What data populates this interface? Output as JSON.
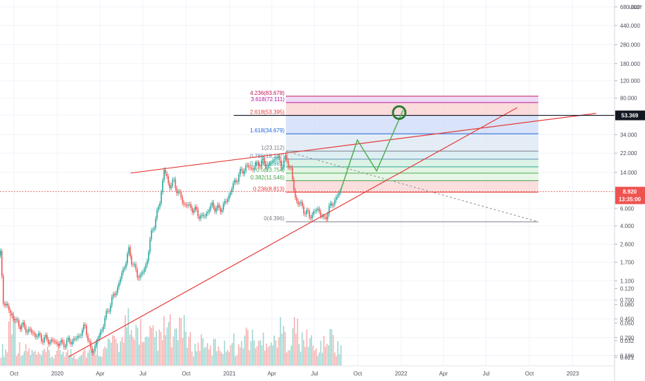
{
  "chart_data": {
    "type": "candlestick",
    "price_scale": "log",
    "axis_unit": "USDT",
    "y_ticks": [
      "680.000",
      "440.000",
      "280.000",
      "180.000",
      "120.000",
      "80.000",
      "54.000",
      "34.000",
      "22.000",
      "14.000",
      "8.900",
      "6.000",
      "4.000",
      "2.600",
      "1.700",
      "1.100",
      "0.700",
      "0.450",
      "0.290",
      "0.190",
      "0.120",
      "0.080",
      "0.050",
      "0.032",
      "0.021"
    ],
    "volume_ticks": [
      "0.120",
      "0.080",
      "0.050",
      "0.032",
      "0.021"
    ],
    "x_ticks": [
      "Oct",
      "2020",
      "Apr",
      "Jul",
      "Oct",
      "2021",
      "Apr",
      "Jul",
      "Oct",
      "2022",
      "Apr",
      "Jul",
      "Oct",
      "2023"
    ],
    "x_range": [
      "2019-09-01",
      "2023-03-31"
    ],
    "y_range": [
      0.15,
      800
    ],
    "price_path": [
      [
        "2019-09-02",
        2.0
      ],
      [
        "2019-09-08",
        0.7
      ],
      [
        "2019-09-20",
        0.55
      ],
      [
        "2019-10-05",
        0.42
      ],
      [
        "2019-10-25",
        0.36
      ],
      [
        "2019-11-20",
        0.3
      ],
      [
        "2019-12-15",
        0.27
      ],
      [
        "2020-01-10",
        0.25
      ],
      [
        "2020-02-10",
        0.28
      ],
      [
        "2020-03-01",
        0.38
      ],
      [
        "2020-03-13",
        0.2
      ],
      [
        "2020-03-30",
        0.3
      ],
      [
        "2020-04-20",
        0.6
      ],
      [
        "2020-05-10",
        1.0
      ],
      [
        "2020-06-01",
        2.2
      ],
      [
        "2020-06-20",
        1.2
      ],
      [
        "2020-07-05",
        1.4
      ],
      [
        "2020-07-20",
        3.5
      ],
      [
        "2020-08-05",
        6.5
      ],
      [
        "2020-08-15",
        15.0
      ],
      [
        "2020-08-25",
        10.5
      ],
      [
        "2020-09-05",
        11.0
      ],
      [
        "2020-09-25",
        6.8
      ],
      [
        "2020-10-15",
        6.0
      ],
      [
        "2020-11-05",
        4.8
      ],
      [
        "2020-11-25",
        6.5
      ],
      [
        "2020-12-10",
        5.8
      ],
      [
        "2020-12-25",
        7.0
      ],
      [
        "2021-01-05",
        9.5
      ],
      [
        "2021-01-20",
        13.0
      ],
      [
        "2021-02-05",
        16.0
      ],
      [
        "2021-02-20",
        15.5
      ],
      [
        "2021-03-10",
        18.0
      ],
      [
        "2021-03-25",
        16.0
      ],
      [
        "2021-04-10",
        20.5
      ],
      [
        "2021-04-22",
        16.5
      ],
      [
        "2021-05-01",
        19.5
      ],
      [
        "2021-05-12",
        15.0
      ],
      [
        "2021-05-20",
        7.8
      ],
      [
        "2021-06-01",
        6.5
      ],
      [
        "2021-06-20",
        5.0
      ],
      [
        "2021-07-10",
        6.0
      ],
      [
        "2021-07-20",
        4.5
      ],
      [
        "2021-08-01",
        6.0
      ],
      [
        "2021-08-10",
        7.0
      ],
      [
        "2021-08-20",
        8.2
      ],
      [
        "2021-08-25",
        8.92
      ]
    ],
    "volume_profile": [
      0.3,
      0.9,
      0.35,
      0.3,
      0.25,
      0.2,
      0.25,
      0.2,
      0.3,
      0.25,
      0.2,
      0.3,
      0.25,
      0.35,
      0.3,
      0.45,
      0.4,
      0.8,
      0.5,
      0.7,
      0.45,
      0.55,
      0.5,
      0.7,
      0.5,
      0.9,
      0.45,
      0.35,
      0.5,
      0.3,
      0.4,
      0.35,
      0.45,
      0.35,
      0.6,
      0.5,
      0.4,
      0.55,
      0.45,
      0.65,
      0.5,
      0.7,
      0.45,
      0.55,
      0.3,
      0.4,
      0.55,
      0.35
    ],
    "fib_levels": [
      {
        "ratio": "4.236",
        "price": 83.678,
        "label": "4.236(83.678)",
        "color": "#c2185b",
        "fill": "#f3c4dc"
      },
      {
        "ratio": "3.618",
        "price": 72.111,
        "label": "3.618(72.111)",
        "color": "#b5179e",
        "fill": "#ead0f2"
      },
      {
        "ratio": "2.618",
        "price": 53.395,
        "label": "2.618(53.395)",
        "color": "#e53935",
        "fill": "#f9cfcf"
      },
      {
        "ratio": "1.618",
        "price": 34.679,
        "label": "1.618(34.679)",
        "color": "#1e63d6",
        "fill": "#ccd9f7"
      },
      {
        "ratio": "1",
        "price": 23.112,
        "label": "1(23.112)",
        "color": "#787b86",
        "fill": "#dbe7f3"
      },
      {
        "ratio": "0.786",
        "price": 19.107,
        "label": "0.786(19.107)",
        "color": "#5b8fb0",
        "fill": "#d3e9f0"
      },
      {
        "ratio": "0.618",
        "price": 15.963,
        "label": "0.618(15.963)",
        "color": "#26a69a",
        "fill": "#d1eedd"
      },
      {
        "ratio": "0.5",
        "price": 13.754,
        "label": "0.5(13.754)",
        "color": "#4caf50",
        "fill": "#d9f0d9"
      },
      {
        "ratio": "0.382",
        "price": 11.546,
        "label": "0.382(11.546)",
        "color": "#43a047",
        "fill": "#e0f3e0"
      },
      {
        "ratio": "0.236",
        "price": 8.813,
        "label": "0.236(8.813)",
        "color": "#e53935",
        "fill": "#f9d3d3"
      },
      {
        "ratio": "0",
        "price": 4.396,
        "label": "0(4.396)",
        "color": "#787b86",
        "fill": ""
      }
    ],
    "fib_start": "2021-05-01",
    "fib_end": "2022-10-20",
    "horizontal_line": {
      "price": 53.369,
      "from": "2021-01-10",
      "to": "2023-03-31",
      "color": "#131722"
    },
    "trendlines": [
      {
        "name": "upper",
        "from": [
          "2020-06-05",
          13.8
        ],
        "to": [
          "2023-02-20",
          56.0
        ],
        "color": "#e53935"
      },
      {
        "name": "lower",
        "from": [
          "2020-01-25",
          0.185
        ],
        "to": [
          "2022-09-05",
          64.0
        ],
        "color": "#e53935"
      },
      {
        "name": "dashed",
        "from": [
          "2021-05-01",
          23.0
        ],
        "to": [
          "2022-10-20",
          4.396
        ],
        "color": "#9e9e9e"
      }
    ],
    "projection": {
      "color": "#4caf50",
      "points": [
        [
          "2021-08-25",
          9.0
        ],
        [
          "2021-09-30",
          30.0
        ],
        [
          "2021-11-10",
          14.5
        ],
        [
          "2022-01-05",
          60.0
        ]
      ]
    },
    "target_circle": {
      "date": "2021-12-28",
      "price": 57.0,
      "color": "#2e7d32"
    },
    "current_price": {
      "value": "8.920",
      "countdown": "13:35:00",
      "color": "#ef5350",
      "price": 8.92
    },
    "level_badge": {
      "value": "53.369",
      "price": 53.369,
      "color": "#131722"
    }
  }
}
